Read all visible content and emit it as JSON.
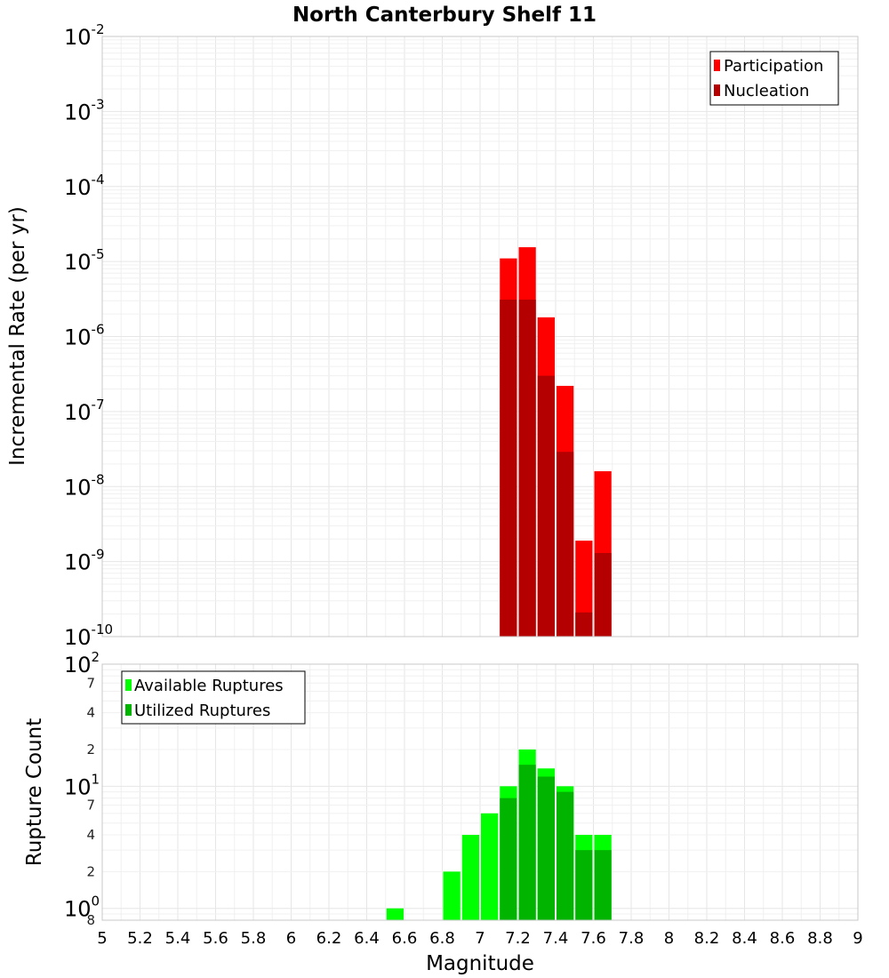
{
  "chart_data": [
    {
      "type": "bar",
      "title": "North Canterbury Shelf 11",
      "xlabel": "",
      "ylabel": "Incremental Rate (per yr)",
      "y_scale": "log",
      "ylim": [
        1e-10,
        0.01
      ],
      "xlim": [
        5,
        9
      ],
      "bin_width": 0.1,
      "legend_position": "top-right",
      "grid": true,
      "y_major_ticks": [
        {
          "base": "10",
          "exp": "-10",
          "value": 1e-10
        },
        {
          "base": "10",
          "exp": "-9",
          "value": 1e-09
        },
        {
          "base": "10",
          "exp": "-8",
          "value": 1e-08
        },
        {
          "base": "10",
          "exp": "-7",
          "value": 1e-07
        },
        {
          "base": "10",
          "exp": "-6",
          "value": 1e-06
        },
        {
          "base": "10",
          "exp": "-5",
          "value": 1e-05
        },
        {
          "base": "10",
          "exp": "-4",
          "value": 0.0001
        },
        {
          "base": "10",
          "exp": "-3",
          "value": 0.001
        },
        {
          "base": "10",
          "exp": "-2",
          "value": 0.01
        }
      ],
      "series": [
        {
          "name": "Participation",
          "color": "#ff0000",
          "x": [
            7.15,
            7.25,
            7.35,
            7.45,
            7.55,
            7.65
          ],
          "values": [
            1.1e-05,
            1.55e-05,
            1.8e-06,
            2.2e-07,
            1.9e-09,
            1.6e-08
          ]
        },
        {
          "name": "Nucleation",
          "color": "#b40000",
          "x": [
            7.15,
            7.25,
            7.35,
            7.45,
            7.55,
            7.65
          ],
          "values": [
            3.1e-06,
            3.1e-06,
            3e-07,
            2.9e-08,
            2.1e-10,
            1.3e-09
          ]
        }
      ]
    },
    {
      "type": "bar",
      "title": "",
      "xlabel": "Magnitude",
      "ylabel": "Rupture Count",
      "y_scale": "log",
      "ylim": [
        0.8,
        100
      ],
      "xlim": [
        5,
        9
      ],
      "bin_width": 0.1,
      "legend_position": "top-left",
      "grid": true,
      "x_ticks": [
        "5",
        "5.2",
        "5.4",
        "5.6",
        "5.8",
        "6",
        "6.2",
        "6.4",
        "6.6",
        "6.8",
        "7",
        "7.2",
        "7.4",
        "7.6",
        "7.8",
        "8",
        "8.2",
        "8.4",
        "8.6",
        "8.8",
        "9"
      ],
      "y_major_ticks": [
        {
          "base": "10",
          "exp": "0",
          "value": 1
        },
        {
          "base": "10",
          "exp": "1",
          "value": 10
        },
        {
          "base": "10",
          "exp": "2",
          "value": 100
        }
      ],
      "y_minor_ticks": [
        {
          "label": "8",
          "value": 0.8
        },
        {
          "label": "2",
          "value": 2
        },
        {
          "label": "4",
          "value": 4
        },
        {
          "label": "7",
          "value": 7
        },
        {
          "label": "2",
          "value": 20
        },
        {
          "label": "4",
          "value": 40
        },
        {
          "label": "7",
          "value": 70
        }
      ],
      "series": [
        {
          "name": "Available Ruptures",
          "color": "#00ff00",
          "x": [
            6.55,
            6.85,
            6.95,
            7.05,
            7.15,
            7.25,
            7.35,
            7.45,
            7.55,
            7.65
          ],
          "values": [
            1,
            2,
            4,
            6,
            10,
            20,
            14,
            10,
            4,
            4
          ]
        },
        {
          "name": "Utilized Ruptures",
          "color": "#00b400",
          "x": [
            7.15,
            7.25,
            7.35,
            7.45,
            7.55,
            7.65
          ],
          "values": [
            8,
            15,
            12,
            9,
            3,
            3
          ]
        }
      ]
    }
  ]
}
